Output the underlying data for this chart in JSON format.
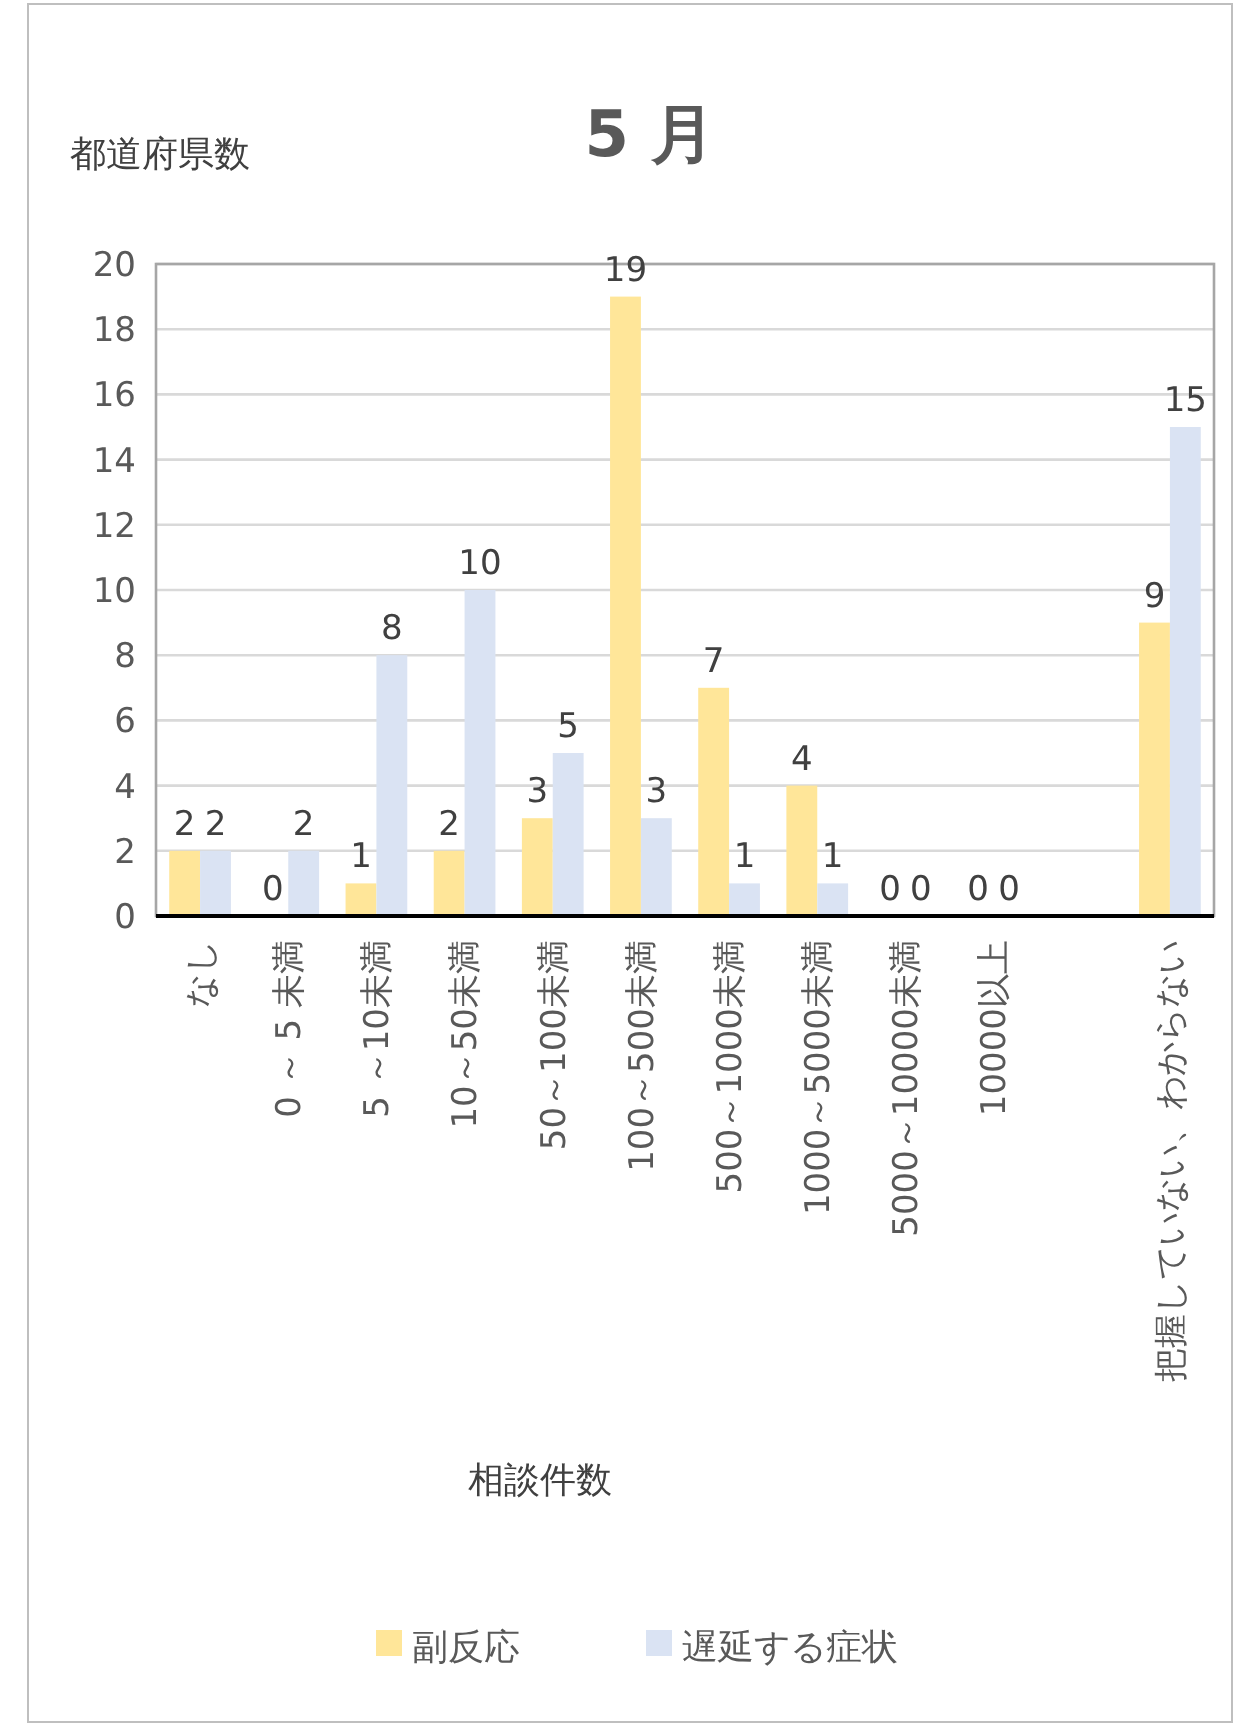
{
  "chart_data": {
    "type": "bar",
    "title": "5 月",
    "xlabel": "相談件数",
    "ylabel": "都道府県数",
    "categories": [
      "なし",
      "0 ～ 5 未満",
      "5 ～10未満",
      "10～50未満",
      "50～100未満",
      "100～500未満",
      "500～1000未満",
      "1000～5000未満",
      "5000～10000未満",
      "10000以上",
      null,
      "把握していない、わからない"
    ],
    "series": [
      {
        "name": "副反応",
        "color": "#ffe699",
        "values": [
          2,
          0,
          1,
          2,
          3,
          19,
          7,
          4,
          0,
          0,
          null,
          9
        ]
      },
      {
        "name": "遅延する症状",
        "color": "#dae3f3",
        "values": [
          2,
          2,
          8,
          10,
          5,
          3,
          1,
          1,
          0,
          0,
          null,
          15
        ]
      }
    ],
    "ylim": [
      0,
      20
    ],
    "yticks": [
      0,
      2,
      4,
      6,
      8,
      10,
      12,
      14,
      16,
      18,
      20
    ],
    "grid": "y",
    "data_labels": true,
    "legend": "bottom"
  }
}
